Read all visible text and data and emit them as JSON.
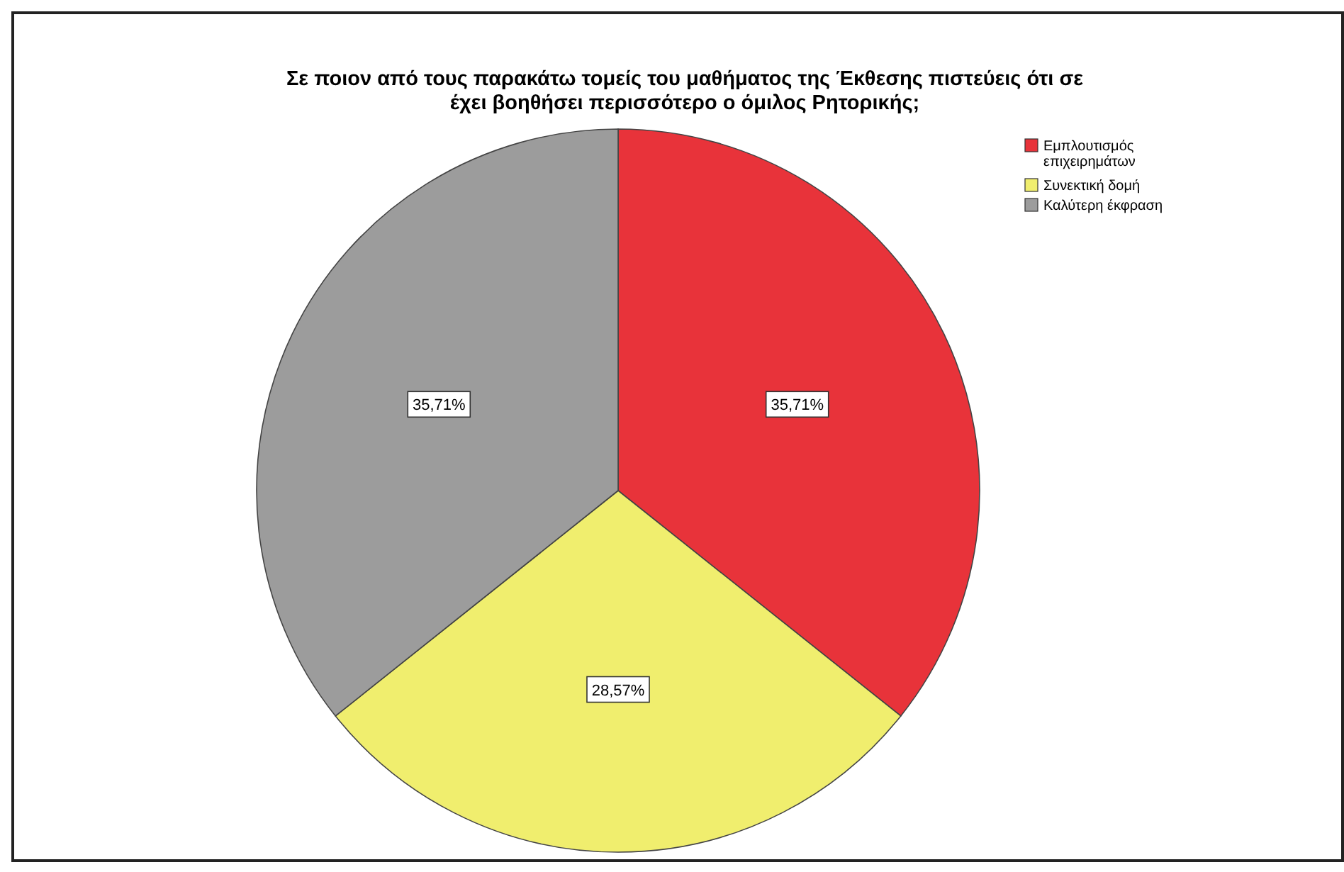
{
  "chart_data": {
    "type": "pie",
    "title": "Σε ποιον από τους παρακάτω τομείς του μαθήματος της Έκθεσης πιστεύεις ότι σε\nέχει βοηθήσει περισσότερο ο όμιλος Ρητορικής;",
    "categories": [
      "Εμπλουτισμός επιχειρημάτων",
      "Συνεκτική δομή",
      "Καλύτερη έκφραση"
    ],
    "values": [
      35.71,
      28.57,
      35.71
    ],
    "colors": [
      "#e8333a",
      "#f0ee6e",
      "#9c9c9c"
    ],
    "value_labels": [
      "35,71%",
      "28,57%",
      "35,71%"
    ],
    "legend": "top right"
  }
}
